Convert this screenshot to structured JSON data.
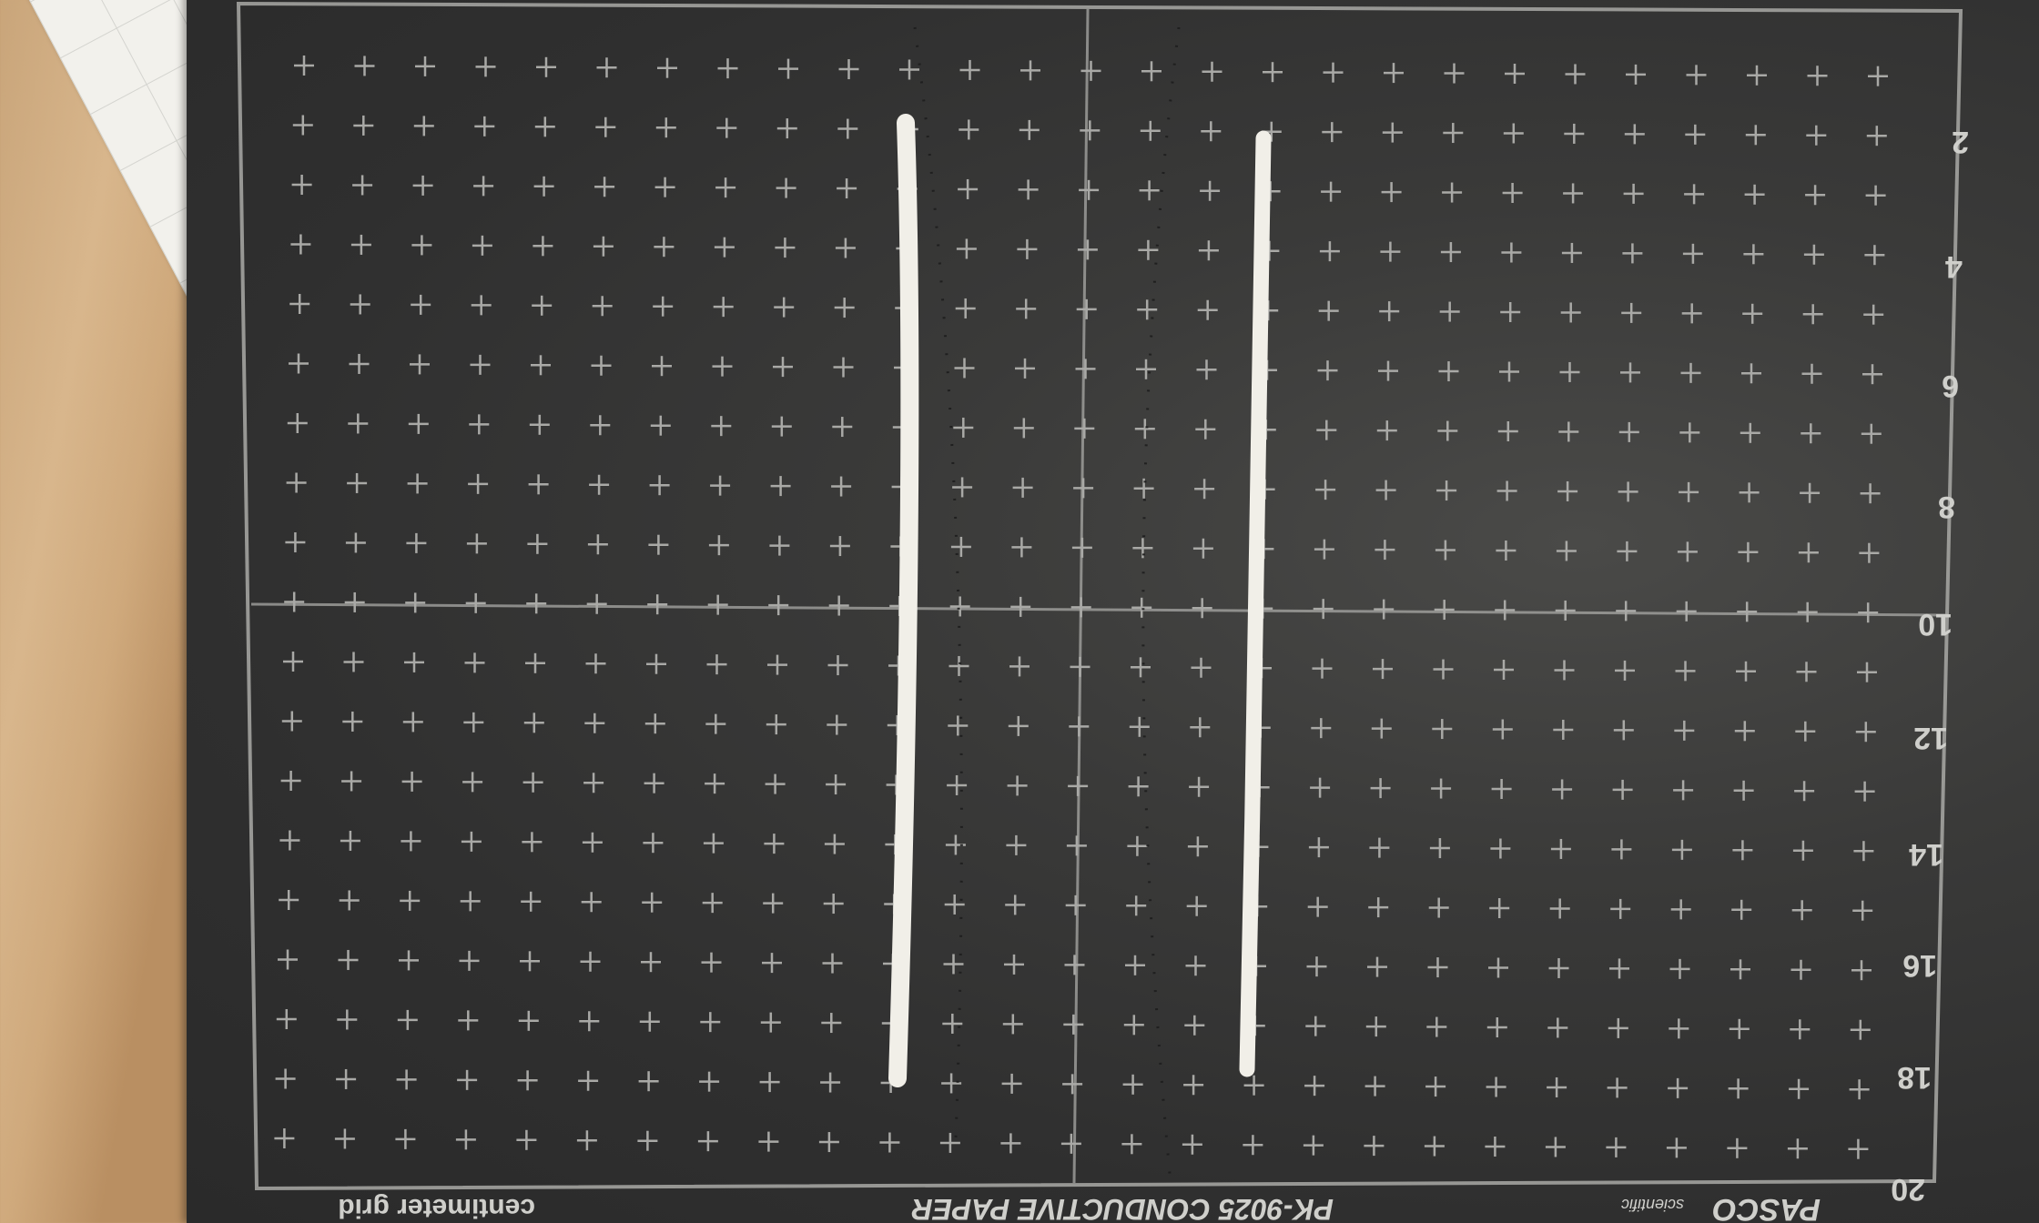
{
  "photo": {
    "subject": "conductive paper with two parallel silver electrode lines",
    "colors": {
      "paper": "#333333",
      "grid": "#a9a9a6",
      "electrode": "#f1efe8",
      "table": "#cfa97c"
    }
  },
  "labels": {
    "left_numbers": [
      "2",
      "4",
      "6",
      "8",
      "10",
      "12",
      "14",
      "16",
      "18",
      "20"
    ],
    "bottom_product": "PK-9025 CONDUCTIVE PAPER",
    "bottom_grid": "centimeter grid",
    "brand": "PASCO",
    "brand_sub": "scientific"
  }
}
